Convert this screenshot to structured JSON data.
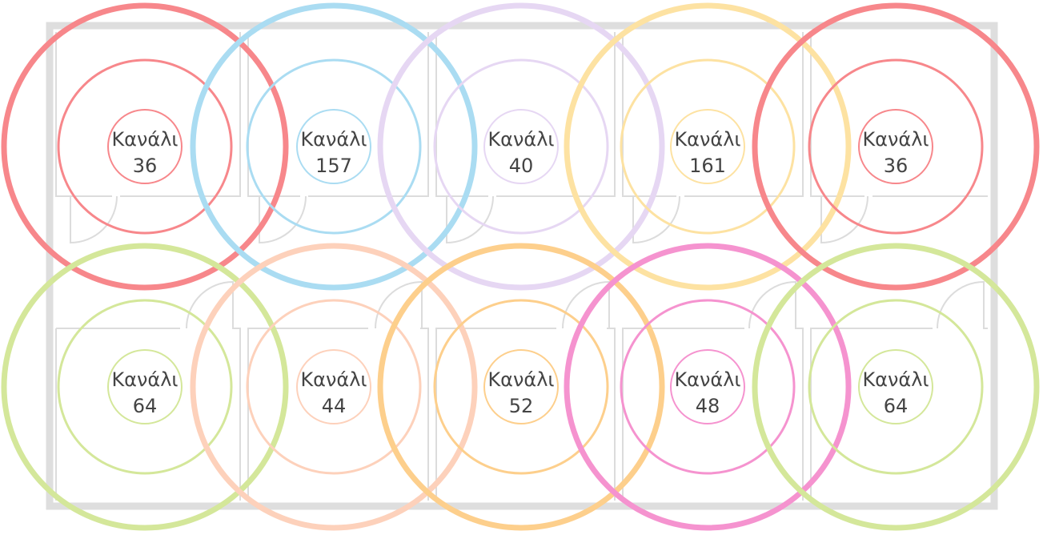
{
  "nodes": [
    {
      "label": "Κανάλι",
      "channel": "36",
      "color": "#f7878b"
    },
    {
      "label": "Κανάλι",
      "channel": "157",
      "color": "#aadcf2"
    },
    {
      "label": "Κανάλι",
      "channel": "40",
      "color": "#e6d7f3"
    },
    {
      "label": "Κανάλι",
      "channel": "161",
      "color": "#fde2a2"
    },
    {
      "label": "Κανάλι",
      "channel": "36",
      "color": "#f7878b"
    },
    {
      "label": "Κανάλι",
      "channel": "64",
      "color": "#d4e79a"
    },
    {
      "label": "Κανάλι",
      "channel": "44",
      "color": "#fdd1bb"
    },
    {
      "label": "Κανάλι",
      "channel": "52",
      "color": "#fdcf8c"
    },
    {
      "label": "Κανάλι",
      "channel": "48",
      "color": "#f593cf"
    },
    {
      "label": "Κανάλι",
      "channel": "64",
      "color": "#d4e79a"
    }
  ]
}
